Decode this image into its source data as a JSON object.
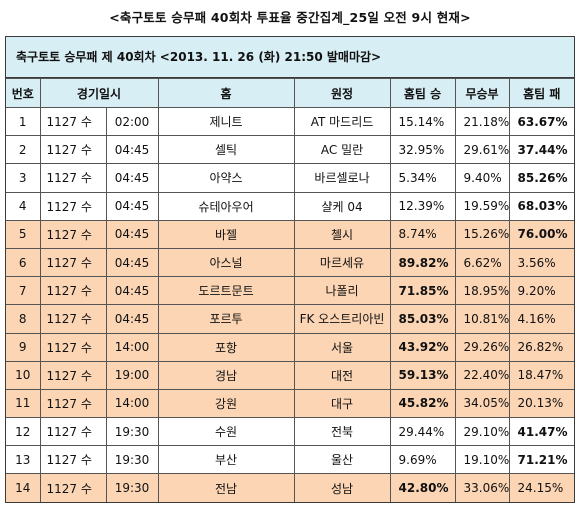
{
  "title": "<축구토토 승무패 40회차 투표율 중간집계_25일 오전 9시 현재>",
  "subtitle": "축구토토 승무패 제 40회차 <2013. 11. 26 (화) 21:50 발매마감>",
  "columns": [
    "번호",
    "경기일시",
    "홈",
    "원정",
    "홈팀 승",
    "무승부",
    "홈팀 패"
  ],
  "highlight_color": "#fcd5b4",
  "header_color": "#d8eef5",
  "rows": [
    {
      "no": "1",
      "date": "1127 수",
      "time": "02:00",
      "home": "제니트",
      "away": "AT 마드리드",
      "win": "15.14%",
      "draw": "21.18%",
      "lose": "63.67%",
      "bold": "lose",
      "hl": false
    },
    {
      "no": "2",
      "date": "1127 수",
      "time": "04:45",
      "home": "셀틱",
      "away": "AC 밀란",
      "win": "32.95%",
      "draw": "29.61%",
      "lose": "37.44%",
      "bold": "lose",
      "hl": false
    },
    {
      "no": "3",
      "date": "1127 수",
      "time": "04:45",
      "home": "아약스",
      "away": "바르셀로나",
      "win": "5.34%",
      "draw": "9.40%",
      "lose": "85.26%",
      "bold": "lose",
      "hl": false
    },
    {
      "no": "4",
      "date": "1127 수",
      "time": "04:45",
      "home": "슈테아우어",
      "away": "샬케 04",
      "win": "12.39%",
      "draw": "19.59%",
      "lose": "68.03%",
      "bold": "lose",
      "hl": false
    },
    {
      "no": "5",
      "date": "1127 수",
      "time": "04:45",
      "home": "바젤",
      "away": "첼시",
      "win": "8.74%",
      "draw": "15.26%",
      "lose": "76.00%",
      "bold": "lose",
      "hl": true
    },
    {
      "no": "6",
      "date": "1127 수",
      "time": "04:45",
      "home": "아스널",
      "away": "마르세유",
      "win": "89.82%",
      "draw": "6.62%",
      "lose": "3.56%",
      "bold": "win",
      "hl": true
    },
    {
      "no": "7",
      "date": "1127 수",
      "time": "04:45",
      "home": "도르트문트",
      "away": "나폴리",
      "win": "71.85%",
      "draw": "18.95%",
      "lose": "9.20%",
      "bold": "win",
      "hl": true
    },
    {
      "no": "8",
      "date": "1127 수",
      "time": "04:45",
      "home": "포르투",
      "away": "FK 오스트리아빈",
      "win": "85.03%",
      "draw": "10.81%",
      "lose": "4.16%",
      "bold": "win",
      "hl": true
    },
    {
      "no": "9",
      "date": "1127 수",
      "time": "14:00",
      "home": "포항",
      "away": "서울",
      "win": "43.92%",
      "draw": "29.26%",
      "lose": "26.82%",
      "bold": "win",
      "hl": true
    },
    {
      "no": "10",
      "date": "1127 수",
      "time": "19:00",
      "home": "경남",
      "away": "대전",
      "win": "59.13%",
      "draw": "22.40%",
      "lose": "18.47%",
      "bold": "win",
      "hl": true
    },
    {
      "no": "11",
      "date": "1127 수",
      "time": "14:00",
      "home": "강원",
      "away": "대구",
      "win": "45.82%",
      "draw": "34.05%",
      "lose": "20.13%",
      "bold": "win",
      "hl": true
    },
    {
      "no": "12",
      "date": "1127 수",
      "time": "19:30",
      "home": "수원",
      "away": "전북",
      "win": "29.44%",
      "draw": "29.10%",
      "lose": "41.47%",
      "bold": "lose",
      "hl": false
    },
    {
      "no": "13",
      "date": "1127 수",
      "time": "19:30",
      "home": "부산",
      "away": "울산",
      "win": "9.69%",
      "draw": "19.10%",
      "lose": "71.21%",
      "bold": "lose",
      "hl": false
    },
    {
      "no": "14",
      "date": "1127 수",
      "time": "19:30",
      "home": "전남",
      "away": "성남",
      "win": "42.80%",
      "draw": "33.06%",
      "lose": "24.15%",
      "bold": "win",
      "hl": true
    }
  ]
}
